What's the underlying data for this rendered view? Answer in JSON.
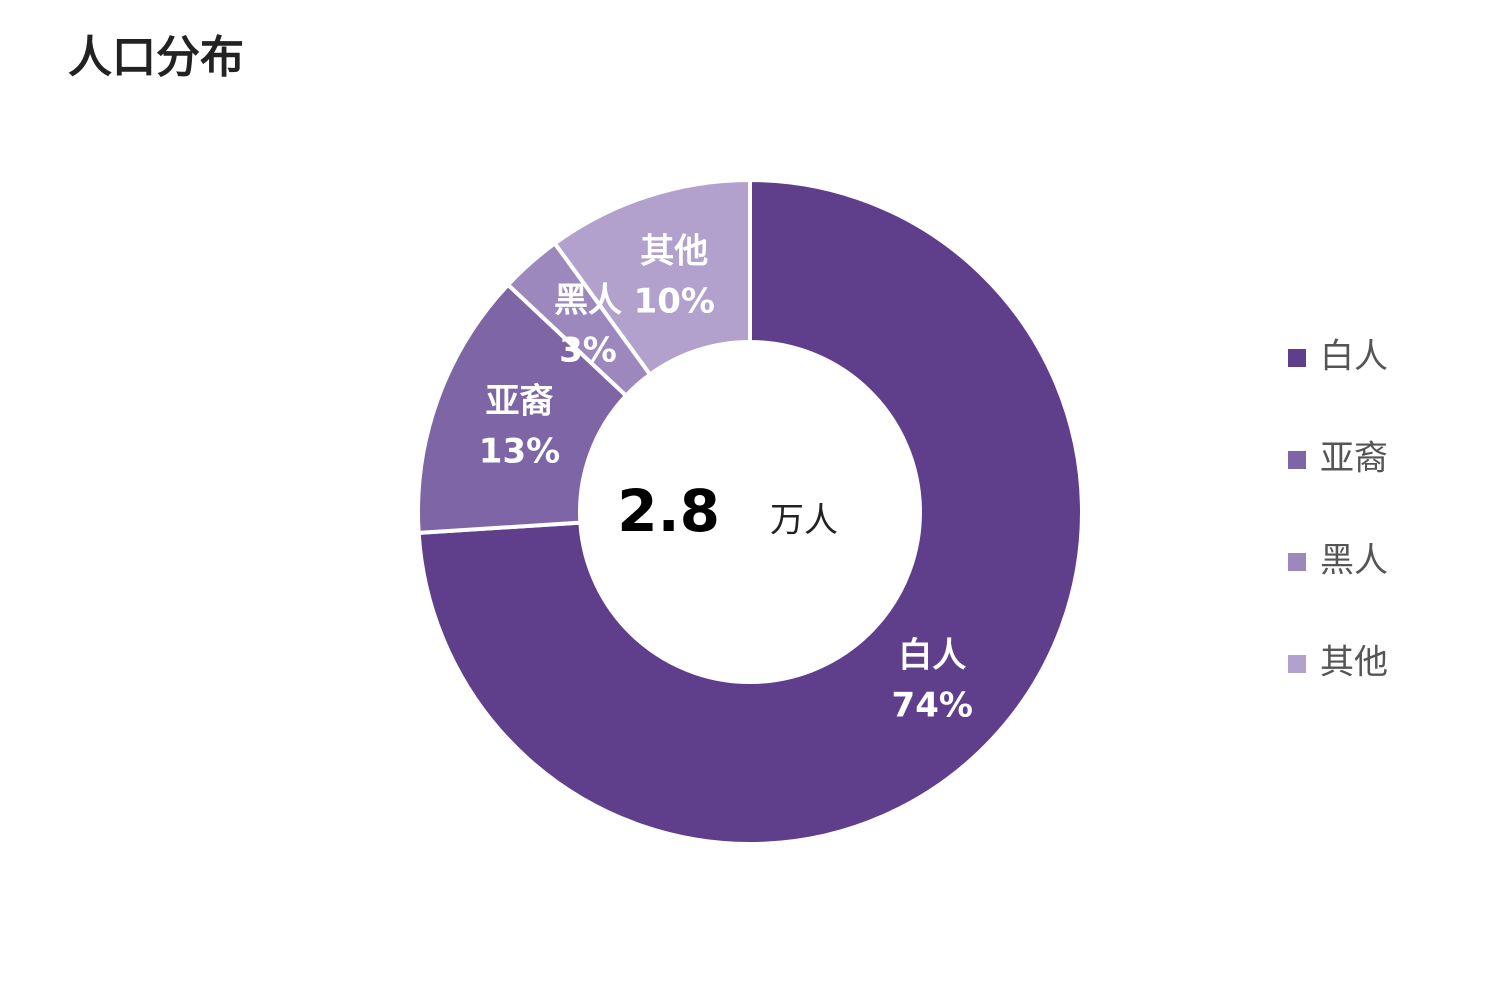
{
  "chart_data": {
    "type": "donut",
    "title": "人口分布",
    "categories": [
      "白人",
      "亚裔",
      "黑人",
      "其他"
    ],
    "values": [
      74,
      13,
      3,
      10
    ],
    "value_labels": [
      "74%",
      "13%",
      "3%",
      "10%"
    ],
    "colors": [
      "#5f3f8b",
      "#7e65a5",
      "#9c88bd",
      "#b1a1cc"
    ],
    "center_value": 2.8,
    "center_unit": "万人",
    "legend": "right"
  }
}
